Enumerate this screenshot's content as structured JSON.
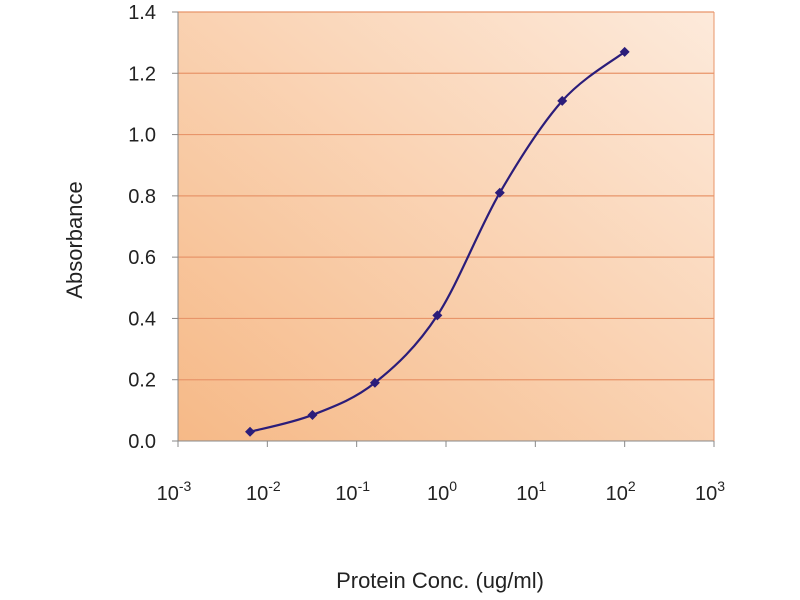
{
  "chart_data": {
    "type": "line",
    "xlabel": "Protein Conc. (ug/ml)",
    "ylabel": "Absorbance",
    "xscale": "log",
    "xlim": [
      0.001,
      1000
    ],
    "ylim": [
      0,
      1.4
    ],
    "grid": "horizontal",
    "plot_background": "#f6b987",
    "plot_background_light": "#fdeadb",
    "gridline_color": "#e8956a",
    "line_color": "#2b1d7a",
    "marker": "diamond",
    "xticks": [
      {
        "base": "10",
        "exp": "-3"
      },
      {
        "base": "10",
        "exp": "-2"
      },
      {
        "base": "10",
        "exp": "-1"
      },
      {
        "base": "10",
        "exp": "0"
      },
      {
        "base": "10",
        "exp": "1"
      },
      {
        "base": "10",
        "exp": "2"
      },
      {
        "base": "10",
        "exp": "3"
      }
    ],
    "yticks": [
      "0.0",
      "0.2",
      "0.4",
      "0.6",
      "0.8",
      "1.0",
      "1.2",
      "1.4"
    ],
    "series": [
      {
        "x": [
          0.0064,
          0.032,
          0.16,
          0.8,
          4,
          20,
          100
        ],
        "y": [
          0.03,
          0.085,
          0.19,
          0.41,
          0.81,
          1.11,
          1.27
        ]
      }
    ]
  }
}
